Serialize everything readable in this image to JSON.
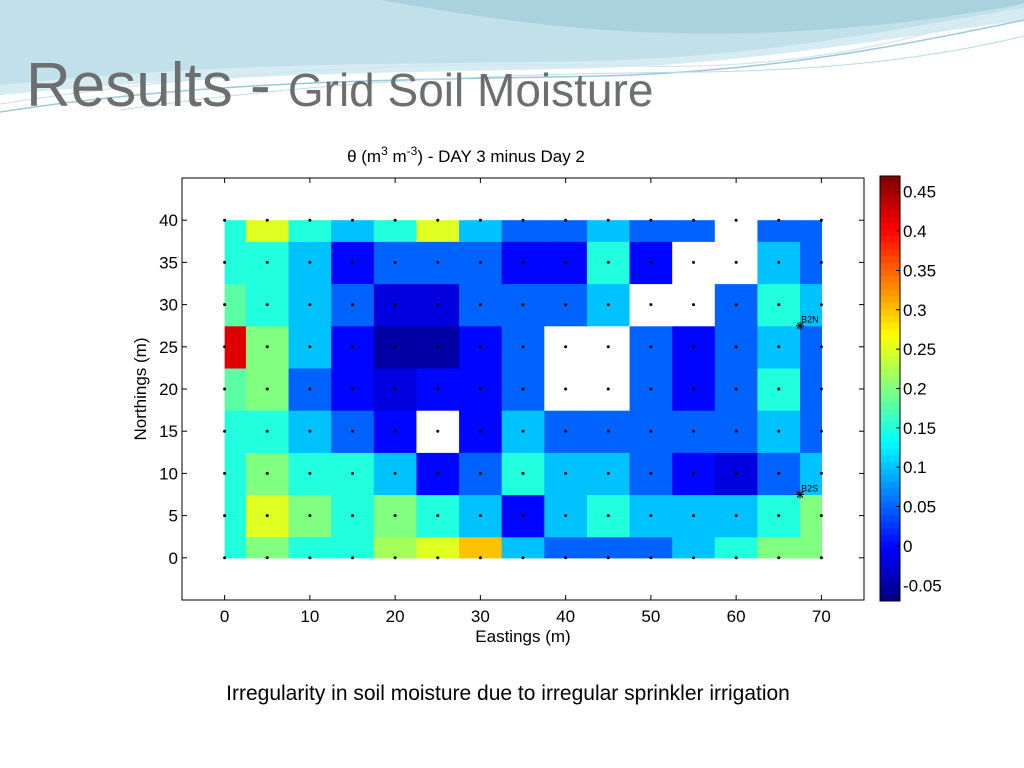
{
  "slide": {
    "title_main": "Results - ",
    "title_sub": "Grid Soil Moisture",
    "caption": "Irregularity in soil moisture due to irregular sprinkler irrigation",
    "accent_colors": [
      "#b9dce6",
      "#d6ecf1",
      "#6d6e70"
    ]
  },
  "chart_data": {
    "type": "heatmap",
    "title": "θ (m3 m-3) - DAY 3 minus Day 2",
    "title_parts": {
      "prefix": "θ (m",
      "sup1": "3",
      "mid": " m",
      "sup2": "-3",
      "suffix": ") - DAY 3 minus Day 2"
    },
    "xlabel": "Eastings (m)",
    "ylabel": "Northings (m)",
    "xlim": [
      -5,
      75
    ],
    "ylim": [
      -5,
      45
    ],
    "x_ticks": [
      0,
      10,
      20,
      30,
      40,
      50,
      60,
      70
    ],
    "y_ticks": [
      0,
      5,
      10,
      15,
      20,
      25,
      30,
      35,
      40
    ],
    "grid_x": [
      0,
      5,
      10,
      15,
      20,
      25,
      30,
      35,
      40,
      45,
      50,
      55,
      60,
      65,
      70
    ],
    "grid_y": [
      0,
      5,
      10,
      15,
      20,
      25,
      30,
      35,
      40
    ],
    "values": [
      [
        0.15,
        0.2,
        0.15,
        0.15,
        0.22,
        0.25,
        0.3,
        0.1,
        0.05,
        0.05,
        0.05,
        0.1,
        0.15,
        0.2,
        0.2
      ],
      [
        0.15,
        0.25,
        0.2,
        0.15,
        0.2,
        0.15,
        0.1,
        0.0,
        0.1,
        0.15,
        0.1,
        0.1,
        0.1,
        0.15,
        0.2
      ],
      [
        0.15,
        0.2,
        0.15,
        0.15,
        0.1,
        0.0,
        0.05,
        0.15,
        0.1,
        0.1,
        0.05,
        0.0,
        -0.02,
        0.05,
        0.1
      ],
      [
        0.15,
        0.15,
        0.1,
        0.05,
        0.0,
        null,
        0.0,
        0.1,
        0.05,
        0.05,
        0.05,
        0.05,
        0.05,
        0.1,
        0.05
      ],
      [
        0.18,
        0.2,
        0.05,
        0.0,
        -0.02,
        0.0,
        0.0,
        0.05,
        null,
        null,
        0.05,
        0.0,
        0.05,
        0.15,
        0.05
      ],
      [
        0.42,
        0.2,
        0.1,
        0.0,
        -0.05,
        -0.05,
        0.0,
        0.05,
        null,
        null,
        0.05,
        0.0,
        0.05,
        0.1,
        0.05
      ],
      [
        0.18,
        0.15,
        0.1,
        0.05,
        -0.02,
        -0.02,
        0.05,
        0.05,
        0.05,
        0.1,
        null,
        null,
        0.05,
        0.15,
        0.1
      ],
      [
        0.15,
        0.15,
        0.1,
        0.0,
        0.05,
        0.05,
        0.05,
        0.0,
        0.0,
        0.15,
        0.0,
        null,
        null,
        0.1,
        0.05
      ],
      [
        0.15,
        0.25,
        0.15,
        0.1,
        0.15,
        0.25,
        0.1,
        0.05,
        0.05,
        0.1,
        0.05,
        0.05,
        null,
        0.05,
        0.05
      ]
    ],
    "markers": [
      {
        "label": "B2N",
        "x": 67.5,
        "y": 27.5
      },
      {
        "label": "B2S",
        "x": 67.5,
        "y": 7.5
      }
    ],
    "colorbar": {
      "min": -0.07,
      "max": 0.47,
      "ticks": [
        -0.05,
        0,
        0.05,
        0.1,
        0.15,
        0.2,
        0.25,
        0.3,
        0.35,
        0.4,
        0.45
      ],
      "tick_labels": [
        "-0.05",
        "0",
        "0.05",
        "0.1",
        "0.15",
        "0.2",
        "0.25",
        "0.3",
        "0.35",
        "0.4",
        "0.45"
      ],
      "colormap": "jet"
    },
    "grid": false,
    "legend": "colorbar-right"
  }
}
